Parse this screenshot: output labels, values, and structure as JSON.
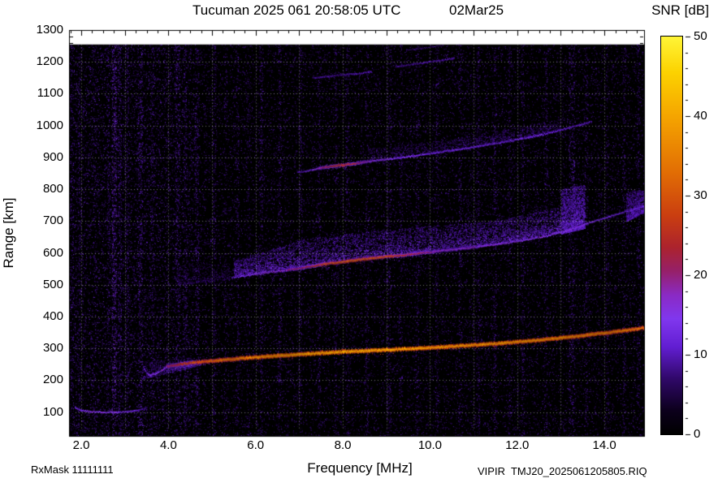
{
  "header": {
    "title": "Tucuman 2025 061 20:58:05 UTC",
    "date": "02Mar25"
  },
  "axes": {
    "xlabel": "Frequency [MHz]",
    "ylabel": "Range [km]"
  },
  "footer": {
    "rxmask": "RxMask 11111111",
    "file": "VIPIR  TMJ20_2025061205805.RIQ"
  },
  "colorbar": {
    "title": "SNR [dB]",
    "min": 0,
    "max": 50,
    "ticks": [
      0,
      10,
      20,
      30,
      40,
      50
    ]
  },
  "colors": {
    "background": "#ffffff",
    "plot_background": "#000000",
    "text": "#000000",
    "grid": "rgba(255,255,255,0.45)"
  },
  "chart_data": {
    "type": "heatmap",
    "title": "Tucuman 2025 061 20:58:05 UTC 02Mar25",
    "xlabel": "Frequency [MHz]",
    "ylabel": "Range [km]",
    "value_label": "SNR [dB]",
    "xlim": [
      1.72,
      14.91
    ],
    "ylim": [
      25,
      1300
    ],
    "vlim": [
      0,
      50
    ],
    "grid": true,
    "xticks": [
      2,
      4,
      6,
      8,
      10,
      12,
      14
    ],
    "xtick_labels": [
      "2.0",
      "4.0",
      "6.0",
      "8.0",
      "10.0",
      "12.0",
      "14.0"
    ],
    "yticks": [
      100,
      200,
      300,
      400,
      500,
      600,
      700,
      800,
      900,
      1000,
      1100,
      1200,
      1300
    ],
    "colorbar_ticks": [
      "0",
      "10",
      "20",
      "30",
      "40",
      "50"
    ],
    "colormap_stops": [
      [
        0.0,
        0,
        0,
        0
      ],
      [
        0.06,
        12,
        0,
        28
      ],
      [
        0.14,
        48,
        8,
        105
      ],
      [
        0.22,
        98,
        30,
        210
      ],
      [
        0.29,
        128,
        55,
        238
      ],
      [
        0.35,
        138,
        42,
        196
      ],
      [
        0.41,
        150,
        32,
        105
      ],
      [
        0.47,
        172,
        35,
        45
      ],
      [
        0.55,
        202,
        62,
        16
      ],
      [
        0.66,
        226,
        110,
        4
      ],
      [
        0.8,
        245,
        165,
        0
      ],
      [
        0.91,
        252,
        210,
        0
      ],
      [
        1.0,
        255,
        245,
        55
      ]
    ],
    "traces": [
      {
        "name": "e-region-echo",
        "thickness": 2,
        "points": [
          [
            1.85,
            113,
            12
          ],
          [
            2.0,
            105,
            14
          ],
          [
            2.2,
            101,
            15
          ],
          [
            2.5,
            99,
            15
          ],
          [
            2.8,
            99,
            14
          ],
          [
            3.05,
            101,
            13
          ],
          [
            3.3,
            105,
            11
          ],
          [
            3.5,
            113,
            9
          ]
        ]
      },
      {
        "name": "f-trace-leading-cusp",
        "thickness": 2,
        "points": [
          [
            3.42,
            240,
            10
          ],
          [
            3.5,
            222,
            13
          ],
          [
            3.58,
            215,
            14
          ],
          [
            3.7,
            220,
            15
          ],
          [
            3.85,
            231,
            16
          ],
          [
            3.95,
            241,
            17
          ]
        ]
      },
      {
        "name": "f-trace-x-branch",
        "thickness": 1,
        "points": [
          [
            3.95,
            229,
            12
          ],
          [
            4.15,
            237,
            13
          ],
          [
            4.45,
            244,
            13
          ],
          [
            4.75,
            249,
            11
          ]
        ]
      },
      {
        "name": "f-region-first-hop",
        "thickness": 3,
        "points": [
          [
            3.95,
            243,
            20
          ],
          [
            4.3,
            251,
            25
          ],
          [
            4.7,
            257,
            29
          ],
          [
            5.2,
            263,
            33
          ],
          [
            5.8,
            270,
            35
          ],
          [
            6.5,
            277,
            37
          ],
          [
            7.2,
            283,
            38
          ],
          [
            8.0,
            289,
            39
          ],
          [
            8.8,
            294,
            39
          ],
          [
            9.6,
            299,
            38
          ],
          [
            10.4,
            305,
            37
          ],
          [
            11.2,
            312,
            37
          ],
          [
            12.0,
            320,
            36
          ],
          [
            12.8,
            330,
            36
          ],
          [
            13.6,
            342,
            35
          ],
          [
            14.3,
            353,
            34
          ],
          [
            14.91,
            365,
            33
          ]
        ]
      },
      {
        "name": "second-hop-echo",
        "thickness": 2,
        "points": [
          [
            5.45,
            522,
            11
          ],
          [
            6.0,
            533,
            14
          ],
          [
            6.6,
            544,
            17
          ],
          [
            7.1,
            554,
            22
          ],
          [
            7.6,
            565,
            29
          ],
          [
            8.1,
            574,
            32
          ],
          [
            8.6,
            582,
            31
          ],
          [
            9.1,
            589,
            28
          ],
          [
            9.6,
            596,
            23
          ],
          [
            10.1,
            604,
            19
          ],
          [
            10.6,
            611,
            17
          ],
          [
            11.1,
            619,
            16
          ],
          [
            11.6,
            628,
            15
          ],
          [
            12.1,
            638,
            15
          ],
          [
            12.6,
            651,
            15
          ],
          [
            13.1,
            668,
            16
          ],
          [
            13.6,
            692,
            14
          ],
          [
            14.1,
            714,
            13
          ],
          [
            14.6,
            734,
            12
          ],
          [
            14.91,
            747,
            12
          ]
        ]
      },
      {
        "name": "third-hop-echo",
        "thickness": 2,
        "points": [
          [
            6.95,
            852,
            9
          ],
          [
            7.3,
            861,
            13
          ],
          [
            7.6,
            869,
            22
          ],
          [
            8.0,
            876,
            27
          ],
          [
            8.35,
            882,
            21
          ],
          [
            8.7,
            889,
            15
          ],
          [
            9.1,
            895,
            13
          ],
          [
            9.6,
            904,
            13
          ],
          [
            10.1,
            914,
            12
          ],
          [
            10.6,
            924,
            12
          ],
          [
            11.1,
            934,
            12
          ],
          [
            11.6,
            946,
            12
          ],
          [
            12.1,
            958,
            12
          ],
          [
            12.6,
            972,
            12
          ],
          [
            13.1,
            990,
            11
          ],
          [
            13.45,
            1002,
            11
          ],
          [
            13.7,
            1013,
            9
          ]
        ]
      },
      {
        "name": "fourth-hop-echo-a",
        "thickness": 2,
        "points": [
          [
            7.3,
            1149,
            8
          ],
          [
            7.8,
            1156,
            9
          ],
          [
            8.3,
            1163,
            9
          ],
          [
            8.65,
            1168,
            8
          ]
        ]
      },
      {
        "name": "fourth-hop-echo-b",
        "thickness": 2,
        "points": [
          [
            9.2,
            1185,
            8
          ],
          [
            9.7,
            1194,
            9
          ],
          [
            10.2,
            1204,
            9
          ],
          [
            10.55,
            1211,
            8
          ]
        ]
      },
      {
        "name": "fourth-hop-echo-c",
        "thickness": 1,
        "points": [
          [
            9.45,
            1236,
            7
          ],
          [
            9.9,
            1244,
            8
          ],
          [
            10.3,
            1252,
            7
          ]
        ]
      }
    ],
    "rfi_streaks": [
      [
        1.78,
        0.3,
        2
      ],
      [
        1.95,
        0.25,
        2
      ],
      [
        2.3,
        0.2,
        2
      ],
      [
        2.62,
        0.3,
        2
      ],
      [
        2.75,
        0.95,
        3
      ],
      [
        2.88,
        0.45,
        2
      ],
      [
        3.05,
        0.3,
        2
      ],
      [
        3.35,
        0.55,
        3
      ],
      [
        3.62,
        0.25,
        2
      ],
      [
        4.2,
        0.5,
        3
      ],
      [
        4.38,
        0.3,
        2
      ],
      [
        4.65,
        0.3,
        2
      ],
      [
        5.05,
        0.35,
        2
      ],
      [
        5.3,
        0.2,
        2
      ],
      [
        5.58,
        0.3,
        2
      ],
      [
        5.82,
        0.2,
        2
      ],
      [
        6.12,
        0.35,
        2
      ],
      [
        6.55,
        0.4,
        2
      ],
      [
        7.02,
        0.3,
        2
      ],
      [
        7.45,
        0.3,
        2
      ],
      [
        7.82,
        0.25,
        2
      ],
      [
        8.1,
        0.3,
        2
      ],
      [
        8.55,
        0.3,
        2
      ],
      [
        9.05,
        0.4,
        3
      ],
      [
        9.32,
        0.25,
        2
      ],
      [
        9.7,
        0.3,
        2
      ],
      [
        10.15,
        0.3,
        2
      ],
      [
        10.68,
        0.35,
        2
      ],
      [
        11.1,
        0.3,
        2
      ],
      [
        11.48,
        0.35,
        2
      ],
      [
        11.82,
        0.25,
        2
      ],
      [
        12.12,
        0.35,
        2
      ],
      [
        12.65,
        0.3,
        2
      ],
      [
        13.25,
        0.55,
        4
      ],
      [
        13.58,
        0.3,
        2
      ],
      [
        14.05,
        0.25,
        2
      ],
      [
        14.45,
        0.3,
        2
      ],
      [
        14.78,
        0.3,
        2
      ]
    ],
    "spread_regions": [
      {
        "name": "spread-f-above-second-hop",
        "n": 6500,
        "vmin": 6,
        "vmax": 16,
        "profile": [
          [
            5.5,
            528,
            575
          ],
          [
            7.0,
            556,
            640
          ],
          [
            8.5,
            584,
            668
          ],
          [
            10.0,
            604,
            685
          ],
          [
            11.5,
            627,
            700
          ],
          [
            13.0,
            668,
            748
          ]
        ]
      },
      {
        "name": "spread-blob-13mhz",
        "n": 2000,
        "vmin": 7,
        "vmax": 15,
        "profile": [
          [
            13.0,
            660,
            800
          ],
          [
            13.55,
            678,
            815
          ]
        ]
      },
      {
        "name": "spread-blob-right-edge",
        "n": 1000,
        "vmin": 6,
        "vmax": 13,
        "profile": [
          [
            14.5,
            700,
            795
          ],
          [
            14.91,
            728,
            800
          ]
        ]
      },
      {
        "name": "spread-above-third-hop",
        "n": 1300,
        "vmin": 5,
        "vmax": 11,
        "profile": [
          [
            8.6,
            886,
            928
          ],
          [
            10.5,
            920,
            958
          ],
          [
            13.0,
            986,
            1022
          ]
        ]
      },
      {
        "name": "fuzz-near-f-cusp",
        "n": 500,
        "vmin": 5,
        "vmax": 12,
        "profile": [
          [
            3.4,
            205,
            262
          ],
          [
            4.6,
            242,
            272
          ]
        ]
      },
      {
        "name": "faint-precursor-second-hop",
        "n": 350,
        "vmin": 4,
        "vmax": 9,
        "profile": [
          [
            4.2,
            500,
            560
          ],
          [
            5.4,
            518,
            570
          ]
        ]
      }
    ],
    "noise": {
      "base_count": 30000,
      "vmin": 3,
      "vmax": 10,
      "left_count": 4000,
      "left_fmax": 4.7,
      "left_vmax": 14
    }
  }
}
